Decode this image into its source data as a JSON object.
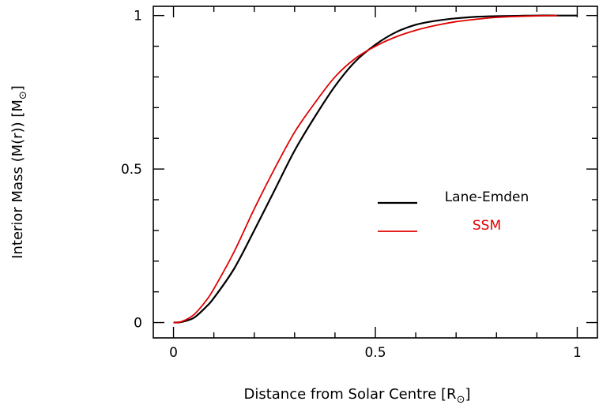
{
  "chart_data": {
    "type": "line",
    "title": "",
    "xlabel": "Distance from Solar Centre [R",
    "xlabel_sub": "⊙",
    "xlabel_close": "]",
    "ylabel": "Interior Mass (M(r)) [M",
    "ylabel_sub": "⊙",
    "ylabel_close": "]",
    "xlim": [
      -0.05,
      1.05
    ],
    "ylim": [
      -0.05,
      1.03
    ],
    "xticks": [
      0,
      0.5,
      1
    ],
    "xtick_labels": [
      "0",
      "0.5",
      "1"
    ],
    "yticks": [
      0,
      0.5,
      1
    ],
    "ytick_labels": [
      "0",
      "0.5",
      "1"
    ],
    "grid": false,
    "legend_position": "center-right",
    "series": [
      {
        "name": "Lane-Emden",
        "color": "#000000",
        "x": [
          0,
          0.02,
          0.05,
          0.08,
          0.1,
          0.15,
          0.2,
          0.25,
          0.3,
          0.35,
          0.4,
          0.45,
          0.5,
          0.55,
          0.6,
          0.65,
          0.7,
          0.75,
          0.8,
          0.85,
          0.9,
          0.95,
          1.0
        ],
        "y": [
          0,
          0.002,
          0.015,
          0.05,
          0.08,
          0.175,
          0.3,
          0.43,
          0.56,
          0.67,
          0.77,
          0.85,
          0.905,
          0.945,
          0.97,
          0.983,
          0.991,
          0.996,
          0.998,
          0.999,
          1.0,
          1.0,
          1.0
        ]
      },
      {
        "name": "SSM",
        "color": "#e00000",
        "x": [
          0,
          0.02,
          0.05,
          0.08,
          0.1,
          0.15,
          0.2,
          0.25,
          0.3,
          0.35,
          0.4,
          0.45,
          0.5,
          0.55,
          0.6,
          0.65,
          0.7,
          0.75,
          0.8,
          0.85,
          0.9,
          0.95
        ],
        "y": [
          0,
          0.003,
          0.025,
          0.07,
          0.11,
          0.23,
          0.37,
          0.5,
          0.62,
          0.715,
          0.8,
          0.86,
          0.9,
          0.93,
          0.952,
          0.968,
          0.98,
          0.988,
          0.994,
          0.997,
          0.999,
          1.0
        ]
      }
    ]
  }
}
